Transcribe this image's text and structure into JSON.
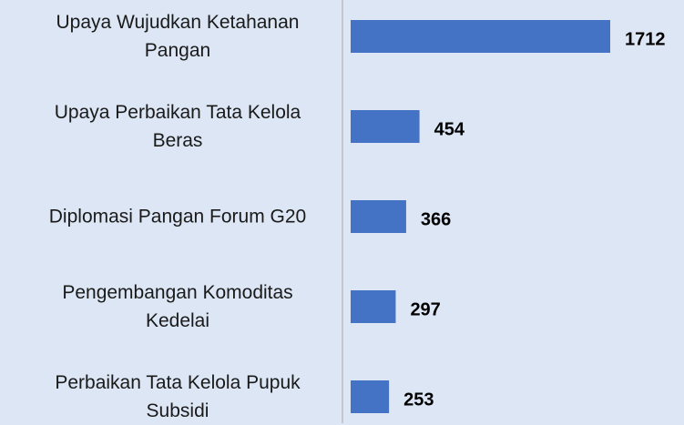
{
  "chart_data": {
    "type": "barh",
    "categories": [
      "Upaya Wujudkan Ketahanan Pangan",
      "Upaya Perbaikan Tata Kelola Beras",
      "Diplomasi Pangan Forum G20",
      "Pengembangan Komoditas Kedelai",
      "Perbaikan Tata Kelola Pupuk Subsidi"
    ],
    "values": [
      1712,
      454,
      366,
      297,
      253
    ],
    "color": "#4472c4"
  }
}
